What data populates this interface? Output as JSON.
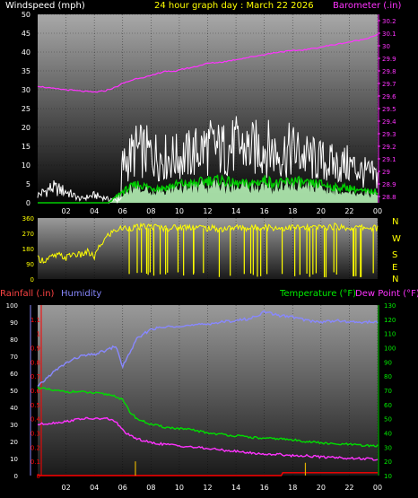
{
  "header": {
    "wind_label": "Windspeed (mph)",
    "title": "24 hour graph day : March 22 2026",
    "baro_label": "Barometer (.in)"
  },
  "lower_header": {
    "rain_label": "Rainfall (.in)",
    "humidity_label": "Humidity",
    "temp_label": "Temperature (°F)",
    "dew_label": "Dew Point (°F)"
  },
  "hour_labels": [
    "02",
    "04",
    "06",
    "08",
    "10",
    "12",
    "14",
    "16",
    "18",
    "20",
    "22",
    "00"
  ],
  "colors": {
    "wind_gust": "#ffffff",
    "wind_avg": "#00cc00",
    "wind_fill": "#bfffbf",
    "baro": "#ff33ff",
    "direction": "#ffff00",
    "humidity": "#8888ff",
    "temperature": "#00dd00",
    "dewpoint": "#ff33ff",
    "rain": "#ff0000",
    "rain_rate": "#e0b000",
    "text_white": "#ffffff",
    "text_yellow": "#ffff00",
    "text_green": "#00ee00",
    "text_red": "#ff4444",
    "text_blue": "#8888ff"
  },
  "chart_data": [
    {
      "type": "line",
      "name": "wind_baro",
      "x_range": [
        0,
        24
      ],
      "left_axis": {
        "label": "Windspeed (mph)",
        "ylim": [
          0,
          50
        ],
        "ticks": [
          0,
          5,
          10,
          15,
          20,
          25,
          30,
          35,
          40,
          45,
          50
        ]
      },
      "right_axis": {
        "label": "Barometer (.in)",
        "ylim": [
          28.75,
          30.25
        ],
        "ticks": [
          "28.8",
          "28.9",
          "29",
          "29.1",
          "29.2",
          "29.3",
          "29.4",
          "29.5",
          "29.6",
          "29.7",
          "29.8",
          "29.9",
          "30",
          "30.1",
          "30.2"
        ]
      },
      "series": [
        {
          "name": "Barometer (.in)",
          "axis": "right",
          "x": [
            0,
            1,
            2,
            3,
            4,
            4.7,
            5.5,
            6,
            7,
            8,
            9,
            9.5,
            10,
            11,
            12,
            13,
            14,
            15,
            16,
            17,
            18,
            19,
            20,
            21,
            22,
            23,
            24
          ],
          "y": [
            29.68,
            29.66,
            29.65,
            29.64,
            29.63,
            29.64,
            29.67,
            29.7,
            29.74,
            29.76,
            29.8,
            29.79,
            29.81,
            29.83,
            29.86,
            29.87,
            29.89,
            29.91,
            29.93,
            29.95,
            29.96,
            29.97,
            29.99,
            30.01,
            30.03,
            30.05,
            30.09
          ]
        },
        {
          "name": "Wind gust",
          "axis": "left",
          "x": [
            0,
            1,
            2,
            3,
            4,
            5,
            5.5,
            6,
            6.5,
            7,
            8,
            9,
            10,
            11,
            12,
            13,
            14,
            15,
            16,
            17,
            18,
            19,
            20,
            21,
            22,
            23,
            24
          ],
          "y": [
            2,
            4,
            3,
            1,
            2,
            1,
            0,
            10,
            12,
            14,
            13,
            12,
            12,
            13,
            15,
            14,
            15,
            14,
            15,
            13,
            14,
            12,
            11,
            10,
            10,
            8,
            7
          ]
        },
        {
          "name": "Wind average",
          "axis": "left",
          "x": [
            0,
            4,
            5,
            6,
            6.5,
            7,
            8,
            9,
            10,
            11,
            12,
            13,
            14,
            15,
            16,
            17,
            18,
            19,
            20,
            21,
            22,
            23,
            24
          ],
          "y": [
            0,
            0,
            0,
            3,
            4,
            5,
            4,
            4,
            5,
            5,
            6,
            6,
            5,
            5,
            6,
            5,
            6,
            5,
            5,
            4,
            4,
            3,
            3
          ]
        }
      ]
    },
    {
      "type": "scatter",
      "name": "wind_direction",
      "x_range": [
        0,
        24
      ],
      "left_axis": {
        "ylim": [
          0,
          360
        ],
        "ticks": [
          0,
          90,
          180,
          270,
          360
        ]
      },
      "right_labels": [
        "N",
        "W",
        "S",
        "E",
        "N"
      ],
      "series": [
        {
          "name": "Direction",
          "x": [
            0,
            0.5,
            1,
            1.5,
            2,
            2.5,
            3,
            3.5,
            4,
            4.3,
            4.6,
            5,
            5.5,
            6,
            7,
            8,
            9,
            10,
            11,
            12,
            13,
            14,
            15,
            16,
            17,
            18,
            19,
            20,
            21,
            22,
            23,
            24
          ],
          "y": [
            120,
            110,
            130,
            140,
            125,
            150,
            140,
            160,
            130,
            180,
            220,
            260,
            290,
            300,
            305,
            310,
            300,
            305,
            310,
            300,
            295,
            305,
            300,
            310,
            300,
            305,
            300,
            305,
            310,
            300,
            305,
            300
          ]
        }
      ]
    },
    {
      "type": "line",
      "name": "temp_hum_rain",
      "x_range": [
        0,
        24
      ],
      "left_axes": [
        {
          "label": "Humidity",
          "ylim": [
            0,
            100
          ],
          "ticks": [
            0,
            10,
            20,
            30,
            40,
            50,
            60,
            70,
            80,
            90,
            100
          ]
        },
        {
          "label": "Rainfall (.in)",
          "ylim": [
            0,
            1.2
          ],
          "ticks": [
            "0",
            "0.1",
            "0.2",
            "0.3",
            "0.4",
            "0.5",
            "0.6",
            "0.7",
            "0.8",
            "0.9",
            "1",
            "1.1"
          ]
        }
      ],
      "right_axis": {
        "label": "Temperature (°F)",
        "ylim": [
          10,
          130
        ],
        "ticks": [
          10,
          20,
          30,
          40,
          50,
          60,
          70,
          80,
          90,
          100,
          110,
          120,
          130
        ]
      },
      "series": [
        {
          "name": "Humidity",
          "axis": "humidity",
          "x": [
            0,
            1,
            2,
            3,
            4,
            5,
            5.5,
            6,
            6.5,
            7,
            8,
            9,
            10,
            11,
            12,
            13,
            14,
            15,
            16,
            17,
            18,
            19,
            20,
            21,
            22,
            23,
            24
          ],
          "y": [
            52,
            60,
            66,
            70,
            71,
            74,
            76,
            64,
            72,
            80,
            86,
            87,
            88,
            88,
            89,
            90,
            91,
            92,
            96,
            94,
            93,
            91,
            90,
            91,
            90,
            90,
            90
          ]
        },
        {
          "name": "Temperature (°F)",
          "axis": "temp",
          "x": [
            0,
            1,
            2,
            3,
            4,
            5,
            5.5,
            6,
            6.5,
            7,
            8,
            9,
            10,
            11,
            12,
            13,
            14,
            15,
            16,
            17,
            18,
            19,
            20,
            21,
            22,
            23,
            24
          ],
          "y": [
            72,
            70,
            69,
            69,
            68,
            67,
            66,
            63,
            55,
            50,
            46,
            44,
            43,
            42,
            40,
            39,
            38,
            37,
            36,
            36,
            35,
            34,
            33,
            32,
            32,
            31,
            31
          ]
        },
        {
          "name": "Dew Point (°F)",
          "axis": "temp",
          "x": [
            0,
            1,
            2,
            3,
            4,
            5,
            5.5,
            6,
            6.5,
            7,
            8,
            9,
            10,
            11,
            12,
            13,
            14,
            15,
            16,
            17,
            18,
            19,
            20,
            21,
            22,
            23,
            24
          ],
          "y": [
            46,
            47,
            48,
            50,
            50,
            50,
            48,
            42,
            38,
            36,
            33,
            32,
            31,
            30,
            29,
            28,
            27,
            26,
            25,
            25,
            24,
            24,
            23,
            23,
            22,
            22,
            21
          ]
        },
        {
          "name": "Rainfall (.in)",
          "axis": "rain",
          "x": [
            0,
            17.2,
            17.3,
            24
          ],
          "y": [
            0,
            0,
            0.02,
            0.02
          ]
        },
        {
          "name": "Rain rate",
          "axis": "rain",
          "x": [
            6.9,
            18.9
          ],
          "y": [
            0.1,
            0.09
          ]
        }
      ]
    }
  ]
}
